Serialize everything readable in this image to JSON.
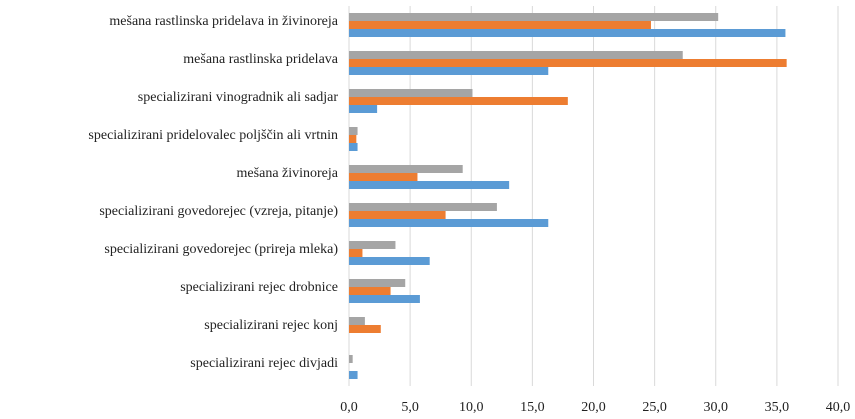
{
  "chart_data": {
    "type": "barh",
    "categories": [
      "mešana rastlinska pridelava in živinoreja",
      "mešana rastlinska pridelava",
      "specializirani vinogradnik ali sadjar",
      "specializirani pridelovalec poljščin ali vrtnin",
      "mešana živinoreja",
      "specializirani govedorejec (vzreja, pitanje)",
      "specializirani govedorejec (prireja mleka)",
      "specializirani rejec drobnice",
      "specializirani rejec konj",
      "specializirani rejec divjadi"
    ],
    "series": [
      {
        "color": "#a5a5a5",
        "values": [
          30.2,
          27.3,
          10.1,
          0.7,
          9.3,
          12.1,
          3.8,
          4.6,
          1.3,
          0.3
        ]
      },
      {
        "color": "#ed7d31",
        "values": [
          24.7,
          35.8,
          17.9,
          0.6,
          5.6,
          7.9,
          1.1,
          3.4,
          2.6,
          0
        ]
      },
      {
        "color": "#5b9bd5",
        "values": [
          35.7,
          16.3,
          2.3,
          0.7,
          13.1,
          16.3,
          6.6,
          5.8,
          0,
          0.7
        ]
      }
    ],
    "xlim": [
      0,
      40
    ],
    "xticks": [
      {
        "value": 0,
        "label": "0,0"
      },
      {
        "value": 5,
        "label": "5,0"
      },
      {
        "value": 10,
        "label": "10,0"
      },
      {
        "value": 15,
        "label": "15,0"
      },
      {
        "value": 20,
        "label": "20,0"
      },
      {
        "value": 25,
        "label": "25,0"
      },
      {
        "value": 30,
        "label": "30,0"
      },
      {
        "value": 35,
        "label": "35,0"
      },
      {
        "value": 40,
        "label": "40,0"
      }
    ],
    "grid": true
  }
}
